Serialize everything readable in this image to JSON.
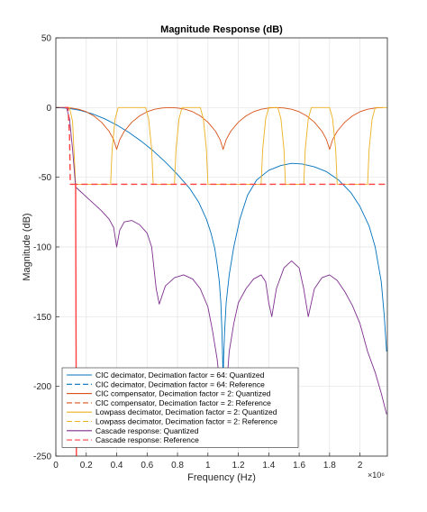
{
  "chart_data": {
    "type": "line",
    "title": "Magnitude Response (dB)",
    "xlabel": "Frequency (Hz)",
    "ylabel": "Magnitude (dB)",
    "xlim": [
      0,
      2.18
    ],
    "ylim": [
      -250,
      50
    ],
    "x_exponent": "×10⁶",
    "x_ticks": [
      0,
      0.2,
      0.4,
      0.6,
      0.8,
      1,
      1.2,
      1.4,
      1.6,
      1.8,
      2
    ],
    "x_tick_labels": [
      "0",
      "0.2",
      "0.4",
      "0.6",
      "0.8",
      "1",
      "1.2",
      "1.4",
      "1.6",
      "1.8",
      "2"
    ],
    "y_ticks": [
      50,
      0,
      -50,
      -100,
      -150,
      -200,
      -250
    ],
    "y_tick_labels": [
      "50",
      "0",
      "-50",
      "-100",
      "-150",
      "-200",
      "-250"
    ],
    "grid": true,
    "legend_position": "bottom-left",
    "colors": {
      "cic": "#0072BD",
      "comp": "#D95319",
      "lowpass": "#EDB120",
      "cascade": "#7E2F8E",
      "reference_red": "#FF4040"
    },
    "series": [
      {
        "name": "CIC decimator, Decimation factor = 64: Quantized",
        "color": "#0072BD",
        "dash": false,
        "points": [
          [
            0,
            0
          ],
          [
            0.08,
            -0.5
          ],
          [
            0.16,
            -2
          ],
          [
            0.24,
            -4.5
          ],
          [
            0.32,
            -8
          ],
          [
            0.4,
            -12.5
          ],
          [
            0.48,
            -17.8
          ],
          [
            0.56,
            -24
          ],
          [
            0.64,
            -31
          ],
          [
            0.72,
            -39
          ],
          [
            0.8,
            -48
          ],
          [
            0.88,
            -58
          ],
          [
            0.94,
            -68
          ],
          [
            0.99,
            -80
          ],
          [
            1.02,
            -90
          ],
          [
            1.045,
            -101
          ],
          [
            1.06,
            -112
          ],
          [
            1.075,
            -125
          ],
          [
            1.085,
            -140
          ],
          [
            1.092,
            -160
          ],
          [
            1.097,
            -180
          ],
          [
            1.1,
            -200
          ],
          [
            1.103,
            -180
          ],
          [
            1.11,
            -160
          ],
          [
            1.12,
            -140
          ],
          [
            1.14,
            -120
          ],
          [
            1.17,
            -100
          ],
          [
            1.21,
            -80
          ],
          [
            1.26,
            -63
          ],
          [
            1.32,
            -52
          ],
          [
            1.4,
            -45
          ],
          [
            1.48,
            -41.5
          ],
          [
            1.55,
            -40
          ],
          [
            1.62,
            -40.5
          ],
          [
            1.7,
            -42.5
          ],
          [
            1.78,
            -46
          ],
          [
            1.86,
            -52
          ],
          [
            1.94,
            -61
          ],
          [
            2.0,
            -71
          ],
          [
            2.06,
            -85
          ],
          [
            2.1,
            -100
          ],
          [
            2.14,
            -125
          ],
          [
            2.16,
            -150
          ],
          [
            2.175,
            -175
          ]
        ]
      },
      {
        "name": "CIC decimator, Decimation factor = 64: Reference",
        "color": "#0072BD",
        "dash": true,
        "points": []
      },
      {
        "name": "CIC compensator, Decimation factor = 2: Quantized",
        "color": "#D95319",
        "dash": false,
        "points": [
          [
            0,
            0
          ],
          [
            0.05,
            0
          ],
          [
            0.1,
            -0.3
          ],
          [
            0.15,
            -1.2
          ],
          [
            0.2,
            -3
          ],
          [
            0.25,
            -6
          ],
          [
            0.3,
            -10.5
          ],
          [
            0.35,
            -17
          ],
          [
            0.38,
            -23
          ],
          [
            0.4,
            -30
          ],
          [
            0.42,
            -23
          ],
          [
            0.45,
            -17
          ],
          [
            0.5,
            -10.5
          ],
          [
            0.55,
            -6
          ],
          [
            0.6,
            -3
          ],
          [
            0.65,
            -1.2
          ],
          [
            0.7,
            -0.3
          ],
          [
            0.75,
            0
          ],
          [
            0.8,
            -0.3
          ],
          [
            0.85,
            -1.2
          ],
          [
            0.9,
            -3
          ],
          [
            0.95,
            -6
          ],
          [
            1.0,
            -10.5
          ],
          [
            1.05,
            -17
          ],
          [
            1.08,
            -23
          ],
          [
            1.1,
            -30
          ],
          [
            1.12,
            -23
          ],
          [
            1.15,
            -17
          ],
          [
            1.2,
            -10.5
          ],
          [
            1.25,
            -6
          ],
          [
            1.3,
            -3
          ],
          [
            1.35,
            -1.2
          ],
          [
            1.4,
            -0.3
          ],
          [
            1.45,
            0
          ],
          [
            1.5,
            -0.3
          ],
          [
            1.55,
            -1.2
          ],
          [
            1.6,
            -3
          ],
          [
            1.65,
            -6
          ],
          [
            1.7,
            -10.5
          ],
          [
            1.75,
            -17
          ],
          [
            1.78,
            -23
          ],
          [
            1.8,
            -30
          ],
          [
            1.82,
            -23
          ],
          [
            1.85,
            -17
          ],
          [
            1.9,
            -10.5
          ],
          [
            1.95,
            -6
          ],
          [
            2.0,
            -3
          ],
          [
            2.05,
            -1.2
          ],
          [
            2.1,
            -0.3
          ],
          [
            2.15,
            0
          ]
        ]
      },
      {
        "name": "CIC compensator, Decimation factor = 2: Reference",
        "color": "#D95319",
        "dash": true,
        "points": []
      },
      {
        "name": "Lowpass decimator, Decimation factor = 2: Quantized",
        "color": "#EDB120",
        "dash": false,
        "points": [
          [
            0,
            0
          ],
          [
            0.09,
            0
          ],
          [
            0.11,
            -10
          ],
          [
            0.13,
            -55
          ],
          [
            0.36,
            -55
          ],
          [
            0.37,
            -30
          ],
          [
            0.39,
            -8
          ],
          [
            0.41,
            0
          ],
          [
            0.59,
            0
          ],
          [
            0.61,
            -8
          ],
          [
            0.63,
            -30
          ],
          [
            0.64,
            -55
          ],
          [
            0.78,
            -55
          ],
          [
            0.79,
            -30
          ],
          [
            0.81,
            -8
          ],
          [
            0.83,
            0
          ],
          [
            0.95,
            0
          ],
          [
            0.97,
            -8
          ],
          [
            0.99,
            -30
          ],
          [
            1.0,
            -55
          ],
          [
            1.35,
            -55
          ],
          [
            1.36,
            -30
          ],
          [
            1.38,
            -8
          ],
          [
            1.4,
            0
          ],
          [
            1.46,
            0
          ],
          [
            1.48,
            -8
          ],
          [
            1.5,
            -30
          ],
          [
            1.51,
            -55
          ],
          [
            1.63,
            -55
          ],
          [
            1.64,
            -30
          ],
          [
            1.66,
            -8
          ],
          [
            1.68,
            0
          ],
          [
            1.8,
            0
          ],
          [
            1.82,
            -8
          ],
          [
            1.84,
            -30
          ],
          [
            1.85,
            -55
          ],
          [
            2.05,
            -55
          ],
          [
            2.06,
            -30
          ],
          [
            2.08,
            -8
          ],
          [
            2.1,
            0
          ],
          [
            2.18,
            0
          ]
        ]
      },
      {
        "name": "Lowpass decimator, Decimation factor = 2: Reference",
        "color": "#EDB120",
        "dash": true,
        "points": []
      },
      {
        "name": "Cascade response: Quantized",
        "color": "#7E2F8E",
        "dash": false,
        "points": [
          [
            0,
            0
          ],
          [
            0.07,
            0
          ],
          [
            0.09,
            -8
          ],
          [
            0.11,
            -30
          ],
          [
            0.13,
            -57
          ],
          [
            0.16,
            -60
          ],
          [
            0.2,
            -64
          ],
          [
            0.25,
            -69
          ],
          [
            0.3,
            -74
          ],
          [
            0.35,
            -80
          ],
          [
            0.38,
            -86
          ],
          [
            0.4,
            -100
          ],
          [
            0.42,
            -88
          ],
          [
            0.45,
            -82
          ],
          [
            0.5,
            -81
          ],
          [
            0.55,
            -84
          ],
          [
            0.6,
            -90
          ],
          [
            0.63,
            -100
          ],
          [
            0.66,
            -130
          ],
          [
            0.68,
            -141
          ],
          [
            0.72,
            -128
          ],
          [
            0.78,
            -122
          ],
          [
            0.84,
            -120
          ],
          [
            0.9,
            -123
          ],
          [
            0.95,
            -130
          ],
          [
            1.0,
            -143
          ],
          [
            1.03,
            -160
          ],
          [
            1.06,
            -180
          ],
          [
            1.08,
            -200
          ],
          [
            1.1,
            -220
          ],
          [
            1.12,
            -205
          ],
          [
            1.14,
            -175
          ],
          [
            1.17,
            -155
          ],
          [
            1.2,
            -140
          ],
          [
            1.25,
            -130
          ],
          [
            1.3,
            -123
          ],
          [
            1.35,
            -120
          ],
          [
            1.38,
            -125
          ],
          [
            1.4,
            -140
          ],
          [
            1.42,
            -150
          ],
          [
            1.45,
            -130
          ],
          [
            1.5,
            -115
          ],
          [
            1.55,
            -110
          ],
          [
            1.6,
            -115
          ],
          [
            1.63,
            -130
          ],
          [
            1.66,
            -150
          ],
          [
            1.7,
            -130
          ],
          [
            1.75,
            -122
          ],
          [
            1.8,
            -120
          ],
          [
            1.85,
            -124
          ],
          [
            1.9,
            -132
          ],
          [
            1.95,
            -142
          ],
          [
            2.0,
            -155
          ],
          [
            2.05,
            -175
          ],
          [
            2.1,
            -190
          ],
          [
            2.14,
            -205
          ],
          [
            2.175,
            -220
          ]
        ]
      },
      {
        "name": "Cascade response: Reference",
        "color": "#FF4040",
        "dash": true,
        "points": [
          [
            0.06,
            0
          ],
          [
            0.08,
            0
          ],
          [
            0.09,
            -20
          ],
          [
            0.095,
            -55
          ],
          [
            0.13,
            -55
          ],
          [
            0.135,
            -250
          ],
          [
            0.13,
            -55
          ],
          [
            2.18,
            -55
          ]
        ]
      }
    ]
  }
}
